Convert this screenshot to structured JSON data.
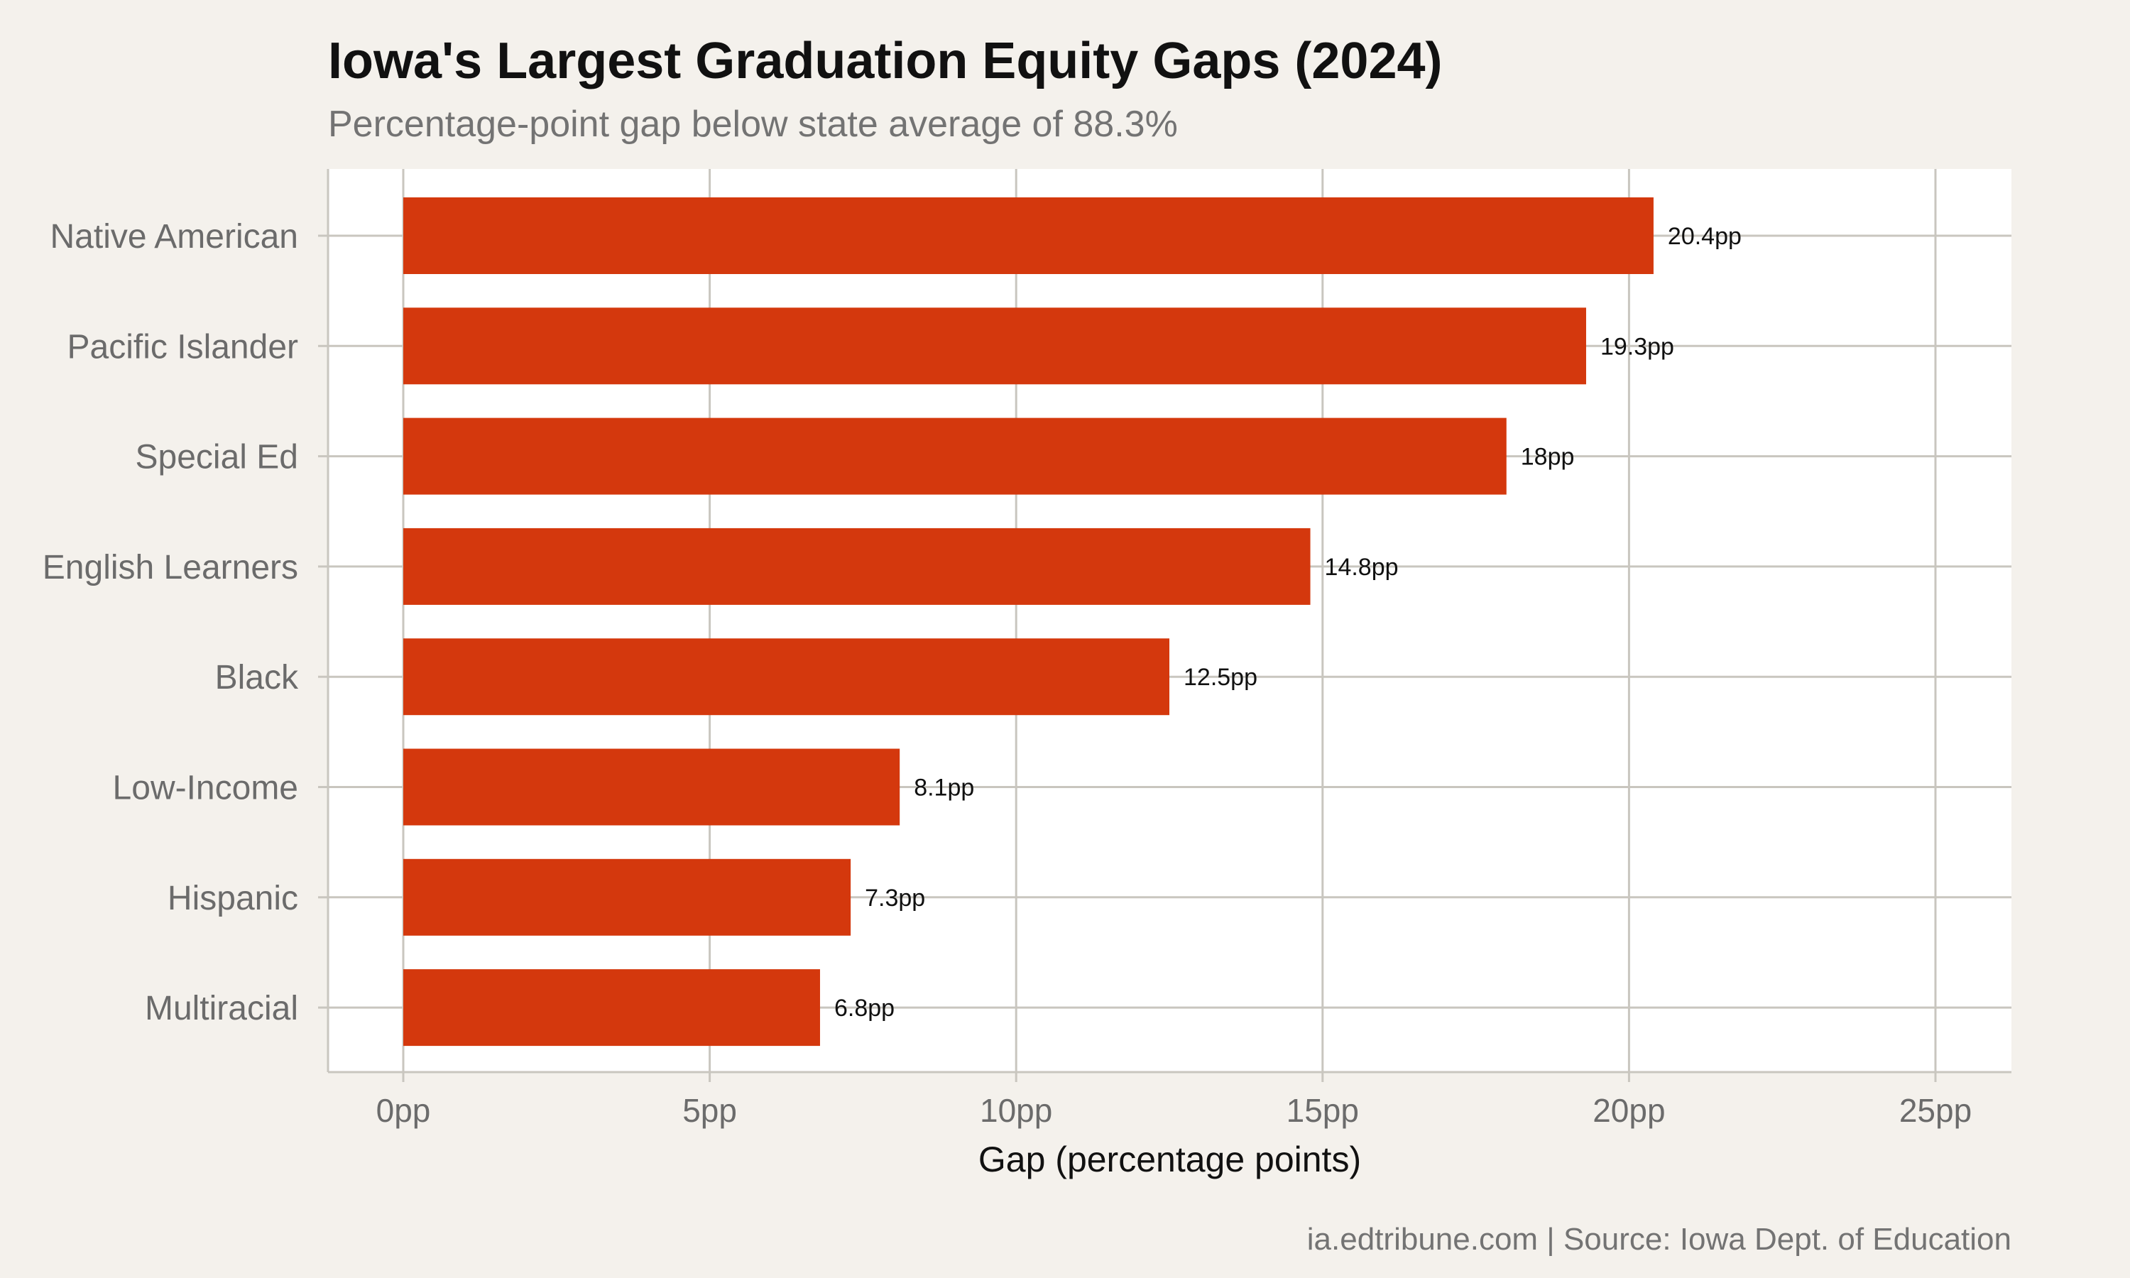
{
  "chart_data": {
    "type": "bar",
    "orientation": "horizontal",
    "title": "Iowa's Largest Graduation Equity Gaps (2024)",
    "subtitle": "Percentage-point gap below state average of 88.3%",
    "xlabel": "Gap (percentage points)",
    "ylabel": "",
    "categories": [
      "Native American",
      "Pacific Islander",
      "Special Ed",
      "English Learners",
      "Black",
      "Low-Income",
      "Hispanic",
      "Multiracial"
    ],
    "values": [
      20.4,
      19.3,
      18,
      14.8,
      12.5,
      8.1,
      7.3,
      6.8
    ],
    "value_labels": [
      "20.4pp",
      "19.3pp",
      "18pp",
      "14.8pp",
      "12.5pp",
      "8.1pp",
      "7.3pp",
      "6.8pp"
    ],
    "xlim": [
      0,
      25
    ],
    "x_ticks": [
      0,
      5,
      10,
      15,
      20,
      25
    ],
    "x_tick_labels": [
      "0pp",
      "5pp",
      "10pp",
      "15pp",
      "20pp",
      "25pp"
    ],
    "grid": true,
    "legend": "none",
    "caption": "ia.edtribune.com | Source: Iowa Dept. of Education",
    "colors": {
      "bar": "#d4380d",
      "background": "#f4f1ec",
      "panel": "#ffffff",
      "grid": "#c9c6bf"
    }
  }
}
